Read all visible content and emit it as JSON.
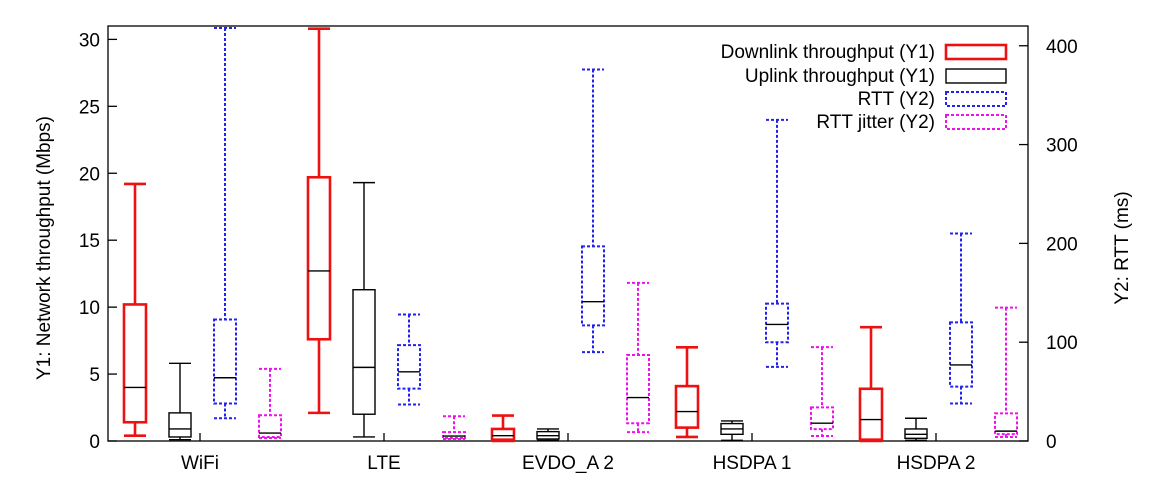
{
  "chart_data": {
    "type": "box",
    "categories": [
      "WiFi",
      "LTE",
      "EVDO_A 2",
      "HSDPA 1",
      "HSDPA 2"
    ],
    "y1": {
      "label": "Y1: Network throughput (Mbps)",
      "lim": [
        0,
        31
      ],
      "ticks": [
        0,
        5,
        10,
        15,
        20,
        25,
        30
      ]
    },
    "y2": {
      "label": "Y2: RTT (ms)",
      "lim": [
        0,
        420
      ],
      "ticks": [
        0,
        100,
        200,
        300,
        400
      ]
    },
    "legend": {
      "placement": "top-right"
    },
    "series": [
      {
        "name": "Downlink throughput (Y1)",
        "axis": "y1",
        "color": "#ee1111",
        "style": "solid",
        "boxes": [
          {
            "min": 0.4,
            "q1": 1.4,
            "median": 4.0,
            "q3": 10.2,
            "max": 19.2
          },
          {
            "min": 2.1,
            "q1": 7.6,
            "median": 12.7,
            "q3": 19.7,
            "max": 30.8
          },
          {
            "min": 0.0,
            "q1": 0.1,
            "median": 0.4,
            "q3": 0.9,
            "max": 1.9
          },
          {
            "min": 0.3,
            "q1": 1.0,
            "median": 2.2,
            "q3": 4.1,
            "max": 7.0
          },
          {
            "min": 0.0,
            "q1": 0.1,
            "median": 1.6,
            "q3": 3.9,
            "max": 8.5
          }
        ]
      },
      {
        "name": "Uplink throughput (Y1)",
        "axis": "y1",
        "color": "#000000",
        "style": "solid",
        "boxes": [
          {
            "min": 0.1,
            "q1": 0.3,
            "median": 0.9,
            "q3": 2.1,
            "max": 5.8
          },
          {
            "min": 0.3,
            "q1": 2.0,
            "median": 5.5,
            "q3": 11.3,
            "max": 19.3
          },
          {
            "min": 0.05,
            "q1": 0.15,
            "median": 0.4,
            "q3": 0.7,
            "max": 0.9
          },
          {
            "min": 0.05,
            "q1": 0.5,
            "median": 0.9,
            "q3": 1.3,
            "max": 1.5
          },
          {
            "min": 0.05,
            "q1": 0.2,
            "median": 0.5,
            "q3": 0.9,
            "max": 1.7
          }
        ]
      },
      {
        "name": "RTT (Y2)",
        "axis": "y2",
        "color": "#2222ee",
        "style": "dotted",
        "boxes": [
          {
            "min": 23,
            "q1": 38,
            "median": 64,
            "q3": 123,
            "max": 418
          },
          {
            "min": 37,
            "q1": 53,
            "median": 70,
            "q3": 97,
            "max": 128
          },
          {
            "min": 90,
            "q1": 117,
            "median": 141,
            "q3": 197,
            "max": 376
          },
          {
            "min": 75,
            "q1": 100,
            "median": 118,
            "q3": 139,
            "max": 325
          },
          {
            "min": 38,
            "q1": 55,
            "median": 77,
            "q3": 120,
            "max": 210
          }
        ]
      },
      {
        "name": "RTT jitter (Y2)",
        "axis": "y2",
        "color": "#ee11ee",
        "style": "dotted",
        "boxes": [
          {
            "min": 3,
            "q1": 4,
            "median": 8,
            "q3": 26,
            "max": 73
          },
          {
            "min": 2,
            "q1": 3,
            "median": 5,
            "q3": 9,
            "max": 25
          },
          {
            "min": 9,
            "q1": 18,
            "median": 44,
            "q3": 87,
            "max": 160
          },
          {
            "min": 5,
            "q1": 12,
            "median": 18,
            "q3": 34,
            "max": 95
          },
          {
            "min": 4,
            "q1": 7,
            "median": 10,
            "q3": 28,
            "max": 135
          }
        ]
      }
    ]
  }
}
